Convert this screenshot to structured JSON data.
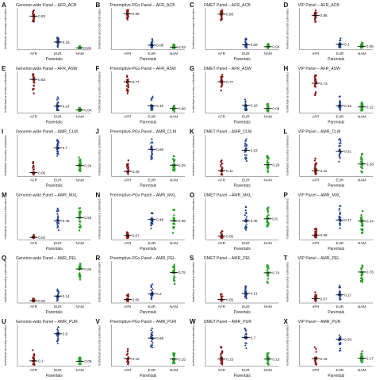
{
  "figure": {
    "columns": 4,
    "rows": 6,
    "xlabel": "Parentals",
    "ylabel": "Individual ancestry estimates",
    "categories": [
      "AFR",
      "EUR",
      "NAM"
    ],
    "colors": {
      "AFR": "#8b1a1a",
      "EUR": "#1f3f8f",
      "NAM": "#2ca02c"
    },
    "marker_shapes": {
      "AFR": "circle",
      "EUR": "triangle",
      "NAM": "square"
    }
  },
  "chart_data": [
    {
      "type": "scatter",
      "panel": "A",
      "title": "Genome-wide Panel – AFR_ACB",
      "categories": [
        "AFR",
        "EUR",
        "NAM"
      ],
      "medians": [
        0.83,
        0.16,
        0.01
      ],
      "spread": [
        [
          0.68,
          0.98
        ],
        [
          0.02,
          0.3
        ],
        [
          0.0,
          0.06
        ]
      ]
    },
    {
      "type": "scatter",
      "panel": "B",
      "title": "Preemptive-PGx Panel – AFR_ACB",
      "categories": [
        "AFR",
        "EUR",
        "NAM"
      ],
      "medians": [
        0.89,
        0.08,
        0.03
      ],
      "spread": [
        [
          0.72,
          0.99
        ],
        [
          0.0,
          0.25
        ],
        [
          0.0,
          0.1
        ]
      ]
    },
    {
      "type": "scatter",
      "panel": "C",
      "title": "DMET Panel – AFR_ACB",
      "categories": [
        "AFR",
        "EUR",
        "NAM"
      ],
      "medians": [
        0.88,
        0.09,
        0.04
      ],
      "spread": [
        [
          0.7,
          0.99
        ],
        [
          0.0,
          0.25
        ],
        [
          0.0,
          0.12
        ]
      ]
    },
    {
      "type": "scatter",
      "panel": "D",
      "title": "VIP Panel – AFR_ACB",
      "categories": [
        "AFR",
        "EUR",
        "NAM"
      ],
      "medians": [
        0.85,
        0.1,
        0.05
      ],
      "spread": [
        [
          0.65,
          0.99
        ],
        [
          0.0,
          0.28
        ],
        [
          0.0,
          0.15
        ]
      ]
    },
    {
      "type": "scatter",
      "panel": "E",
      "title": "Genome-wide Panel – AFR_ASW",
      "categories": [
        "AFR",
        "EUR",
        "NAM"
      ],
      "medians": [
        0.83,
        0.14,
        0.04
      ],
      "spread": [
        [
          0.45,
          0.98
        ],
        [
          0.02,
          0.4
        ],
        [
          0.0,
          0.1
        ]
      ]
    },
    {
      "type": "scatter",
      "panel": "F",
      "title": "Preemptive-PGx Panel – AFR_ASW",
      "categories": [
        "AFR",
        "EUR",
        "NAM"
      ],
      "medians": [
        0.77,
        0.15,
        0.08
      ],
      "spread": [
        [
          0.45,
          0.95
        ],
        [
          0.02,
          0.4
        ],
        [
          0.0,
          0.18
        ]
      ]
    },
    {
      "type": "scatter",
      "panel": "G",
      "title": "DMET Panel – AFR_ASW",
      "categories": [
        "AFR",
        "EUR",
        "NAM"
      ],
      "medians": [
        0.77,
        0.16,
        0.08
      ],
      "spread": [
        [
          0.45,
          0.95
        ],
        [
          0.02,
          0.42
        ],
        [
          0.0,
          0.2
        ]
      ]
    },
    {
      "type": "scatter",
      "panel": "H",
      "title": "VIP Panel – AFR_ASW",
      "categories": [
        "AFR",
        "EUR",
        "NAM"
      ],
      "medians": [
        0.73,
        0.15,
        0.12
      ],
      "spread": [
        [
          0.4,
          0.95
        ],
        [
          0.02,
          0.42
        ],
        [
          0.0,
          0.25
        ]
      ]
    },
    {
      "type": "scatter",
      "panel": "I",
      "title": "Genome-wide Panel – AMR_CLM",
      "categories": [
        "AFR",
        "EUR",
        "NAM"
      ],
      "medians": [
        0.06,
        0.7,
        0.24
      ],
      "spread": [
        [
          0.0,
          0.4
        ],
        [
          0.45,
          0.95
        ],
        [
          0.05,
          0.45
        ]
      ]
    },
    {
      "type": "scatter",
      "panel": "J",
      "title": "Preemptive-PGx Panel – AMR_CLM",
      "categories": [
        "AFR",
        "EUR",
        "NAM"
      ],
      "medians": [
        0.09,
        0.66,
        0.25
      ],
      "spread": [
        [
          0.0,
          0.4
        ],
        [
          0.4,
          0.95
        ],
        [
          0.05,
          0.5
        ]
      ]
    },
    {
      "type": "scatter",
      "panel": "K",
      "title": "DMET Panel – AMR_CLM",
      "categories": [
        "AFR",
        "EUR",
        "NAM"
      ],
      "medians": [
        0.11,
        0.63,
        0.26
      ],
      "spread": [
        [
          0.0,
          0.45
        ],
        [
          0.35,
          0.95
        ],
        [
          0.05,
          0.5
        ]
      ]
    },
    {
      "type": "scatter",
      "panel": "L",
      "title": "VIP Panel – AMR_CLM",
      "categories": [
        "AFR",
        "EUR",
        "NAM"
      ],
      "medians": [
        0.11,
        0.61,
        0.28
      ],
      "spread": [
        [
          0.0,
          0.45
        ],
        [
          0.3,
          0.95
        ],
        [
          0.05,
          0.55
        ]
      ]
    },
    {
      "type": "scatter",
      "panel": "M",
      "title": "Genome-wide Panel – AMR_MXL",
      "categories": [
        "AFR",
        "EUR",
        "NAM"
      ],
      "medians": [
        0.02,
        0.45,
        0.53
      ],
      "spread": [
        [
          0.0,
          0.12
        ],
        [
          0.2,
          0.85
        ],
        [
          0.15,
          0.8
        ]
      ]
    },
    {
      "type": "scatter",
      "panel": "N",
      "title": "Preemptive-PGx Panel – AMR_MXL",
      "categories": [
        "AFR",
        "EUR",
        "NAM"
      ],
      "medians": [
        0.07,
        0.48,
        0.45
      ],
      "spread": [
        [
          0.0,
          0.2
        ],
        [
          0.2,
          0.9
        ],
        [
          0.1,
          0.8
        ]
      ]
    },
    {
      "type": "scatter",
      "panel": "O",
      "title": "DMET Panel – AMR_MXL",
      "categories": [
        "AFR",
        "EUR",
        "NAM"
      ],
      "medians": [
        0.05,
        0.45,
        0.5
      ],
      "spread": [
        [
          0.0,
          0.2
        ],
        [
          0.2,
          0.85
        ],
        [
          0.15,
          0.8
        ]
      ]
    },
    {
      "type": "scatter",
      "panel": "P",
      "title": "VIP Panel – AMR_MXL",
      "categories": [
        "AFR",
        "EUR",
        "NAM"
      ],
      "medians": [
        0.08,
        0.47,
        0.44
      ],
      "spread": [
        [
          0.0,
          0.25
        ],
        [
          0.2,
          0.85
        ],
        [
          0.1,
          0.8
        ]
      ]
    },
    {
      "type": "scatter",
      "panel": "Q",
      "title": "Genome-wide Panel – AMR_PEL",
      "categories": [
        "AFR",
        "EUR",
        "NAM"
      ],
      "medians": [
        0.02,
        0.14,
        0.84
      ],
      "spread": [
        [
          0.0,
          0.1
        ],
        [
          0.02,
          0.4
        ],
        [
          0.55,
          0.98
        ]
      ]
    },
    {
      "type": "scatter",
      "panel": "R",
      "title": "Preemptive-PGx Panel – AMR_PEL",
      "categories": [
        "AFR",
        "EUR",
        "NAM"
      ],
      "medians": [
        0.05,
        0.2,
        0.75
      ],
      "spread": [
        [
          0.0,
          0.2
        ],
        [
          0.05,
          0.45
        ],
        [
          0.45,
          0.95
        ]
      ]
    },
    {
      "type": "scatter",
      "panel": "S",
      "title": "DMET Panel – AMR_PEL",
      "categories": [
        "AFR",
        "EUR",
        "NAM"
      ],
      "medians": [
        0.05,
        0.21,
        0.74
      ],
      "spread": [
        [
          0.0,
          0.2
        ],
        [
          0.05,
          0.45
        ],
        [
          0.45,
          0.95
        ]
      ]
    },
    {
      "type": "scatter",
      "panel": "T",
      "title": "VIP Panel – AMR_PEL",
      "categories": [
        "AFR",
        "EUR",
        "NAM"
      ],
      "medians": [
        0.07,
        0.17,
        0.76
      ],
      "spread": [
        [
          0.0,
          0.25
        ],
        [
          0.05,
          0.45
        ],
        [
          0.45,
          0.95
        ]
      ]
    },
    {
      "type": "scatter",
      "panel": "U",
      "title": "Genome-wide Panel – AMR_PUR",
      "categories": [
        "AFR",
        "EUR",
        "NAM"
      ],
      "medians": [
        0.1,
        0.8,
        0.09
      ],
      "spread": [
        [
          0.0,
          0.45
        ],
        [
          0.5,
          0.98
        ],
        [
          0.0,
          0.2
        ]
      ]
    },
    {
      "type": "scatter",
      "panel": "V",
      "title": "Preemptive-PGx Panel – AMR_PUR",
      "categories": [
        "AFR",
        "EUR",
        "NAM"
      ],
      "medians": [
        0.16,
        0.69,
        0.15
      ],
      "spread": [
        [
          0.0,
          0.5
        ],
        [
          0.4,
          0.95
        ],
        [
          0.0,
          0.3
        ]
      ]
    },
    {
      "type": "scatter",
      "panel": "W",
      "title": "DMET Panel – AMR_PUR",
      "categories": [
        "AFR",
        "EUR",
        "NAM"
      ],
      "medians": [
        0.15,
        0.7,
        0.15
      ],
      "spread": [
        [
          0.0,
          0.5
        ],
        [
          0.4,
          0.95
        ],
        [
          0.0,
          0.3
        ]
      ]
    },
    {
      "type": "scatter",
      "panel": "X",
      "title": "VIP Panel – AMR_PUR",
      "categories": [
        "AFR",
        "EUR",
        "NAM"
      ],
      "medians": [
        0.16,
        0.66,
        0.17
      ],
      "spread": [
        [
          0.0,
          0.5
        ],
        [
          0.35,
          0.95
        ],
        [
          0.0,
          0.35
        ]
      ]
    }
  ]
}
